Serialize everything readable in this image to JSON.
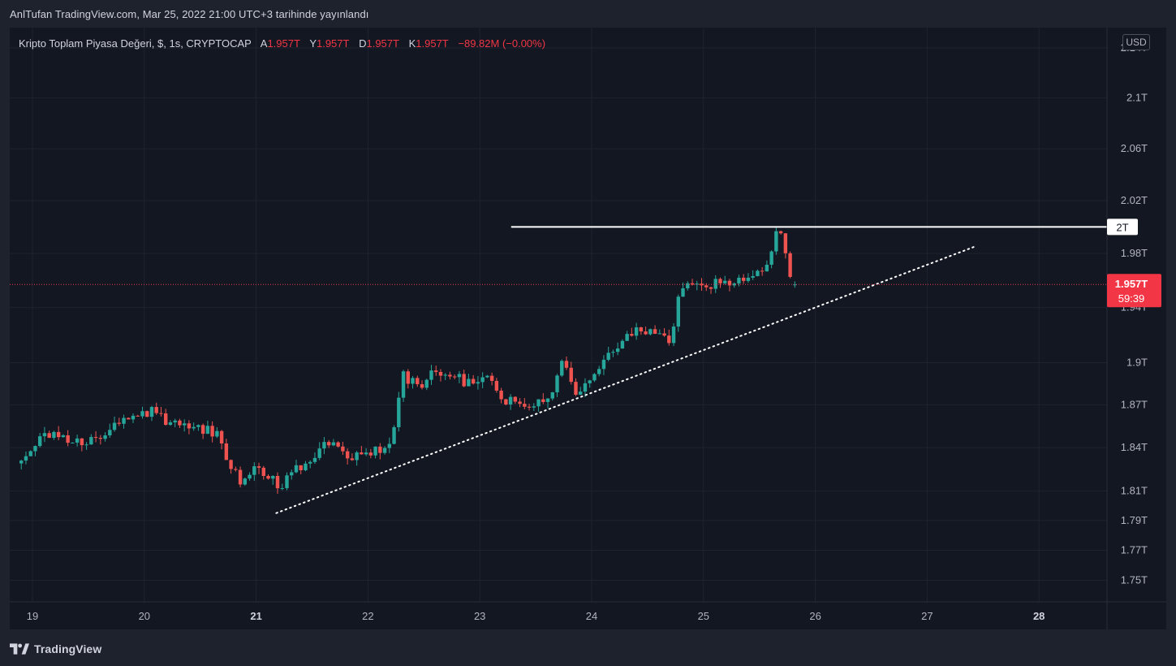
{
  "published_note": "AnlTufan TradingView.com, Mar 25, 2022 21:00 UTC+3 tarihinde yayınlandı",
  "legend": {
    "symbol": "Kripto Toplam Piyasa Değeri, $, 1s, CRYPTOCAP",
    "open_label": "A",
    "open": "1.957T",
    "high_label": "Y",
    "high": "1.957T",
    "low_label": "D",
    "low": "1.957T",
    "close_label": "K",
    "close": "1.957T",
    "change": "−89.82M (−0.00%)"
  },
  "currency": "USD",
  "brand": "TradingView",
  "colors": {
    "up": "#26a69a",
    "down": "#ef5350",
    "background": "#131722",
    "grid": "#1f2330",
    "resistance": "#ffffff",
    "trendline": "#ffffff",
    "price_badge": "#f23645"
  },
  "chart_data": {
    "type": "candlestick",
    "title": "Kripto Toplam Piyasa Değeri, $, 1s, CRYPTOCAP",
    "y_unit": "T",
    "y_scale": "log",
    "ylim": [
      1.74,
      2.13
    ],
    "xlim": [
      18.9,
      28.6
    ],
    "grid": true,
    "y_ticks": [
      {
        "value": 1.75,
        "label": "1.75T"
      },
      {
        "value": 1.77,
        "label": "1.77T"
      },
      {
        "value": 1.79,
        "label": "1.79T"
      },
      {
        "value": 1.81,
        "label": "1.81T"
      },
      {
        "value": 1.84,
        "label": "1.84T"
      },
      {
        "value": 1.87,
        "label": "1.87T"
      },
      {
        "value": 1.9,
        "label": "1.9T"
      },
      {
        "value": 1.94,
        "label": "1.94T"
      },
      {
        "value": 1.98,
        "label": "1.98T"
      },
      {
        "value": 2.02,
        "label": "2.02T"
      },
      {
        "value": 2.06,
        "label": "2.06T"
      },
      {
        "value": 2.1,
        "label": "2.1T"
      },
      {
        "value": 2.14,
        "label": "2.14T"
      }
    ],
    "x_ticks": [
      {
        "value": 19,
        "label": "19"
      },
      {
        "value": 20,
        "label": "20"
      },
      {
        "value": 21,
        "label": "21",
        "bold": true
      },
      {
        "value": 22,
        "label": "22"
      },
      {
        "value": 23,
        "label": "23"
      },
      {
        "value": 24,
        "label": "24"
      },
      {
        "value": 25,
        "label": "25"
      },
      {
        "value": 26,
        "label": "26"
      },
      {
        "value": 27,
        "label": "27"
      },
      {
        "value": 28,
        "label": "28",
        "bold": true
      }
    ],
    "resistance": {
      "value": 2.0,
      "label": "2T",
      "x_start": 23.28
    },
    "last_price": {
      "value": 1.957,
      "label": "1.957T",
      "countdown": "59:39"
    },
    "trendline": {
      "x1": 21.18,
      "y1": 1.795,
      "x2": 27.42,
      "y2": 1.985,
      "style": "dotted"
    },
    "anchors": [
      {
        "x": 18.9,
        "y": 1.829
      },
      {
        "x": 19.1,
        "y": 1.848
      },
      {
        "x": 19.35,
        "y": 1.846
      },
      {
        "x": 19.55,
        "y": 1.843
      },
      {
        "x": 19.85,
        "y": 1.862
      },
      {
        "x": 20.05,
        "y": 1.866
      },
      {
        "x": 20.25,
        "y": 1.856
      },
      {
        "x": 20.5,
        "y": 1.854
      },
      {
        "x": 20.65,
        "y": 1.848
      },
      {
        "x": 20.85,
        "y": 1.817
      },
      {
        "x": 21.0,
        "y": 1.83
      },
      {
        "x": 21.2,
        "y": 1.812
      },
      {
        "x": 21.45,
        "y": 1.832
      },
      {
        "x": 21.65,
        "y": 1.842
      },
      {
        "x": 21.85,
        "y": 1.832
      },
      {
        "x": 22.1,
        "y": 1.838
      },
      {
        "x": 22.2,
        "y": 1.84
      },
      {
        "x": 22.3,
        "y": 1.892
      },
      {
        "x": 22.45,
        "y": 1.882
      },
      {
        "x": 22.6,
        "y": 1.896
      },
      {
        "x": 22.9,
        "y": 1.885
      },
      {
        "x": 23.05,
        "y": 1.893
      },
      {
        "x": 23.2,
        "y": 1.872
      },
      {
        "x": 23.45,
        "y": 1.872
      },
      {
        "x": 23.65,
        "y": 1.875
      },
      {
        "x": 23.75,
        "y": 1.906
      },
      {
        "x": 23.85,
        "y": 1.878
      },
      {
        "x": 24.1,
        "y": 1.902
      },
      {
        "x": 24.3,
        "y": 1.92
      },
      {
        "x": 24.6,
        "y": 1.925
      },
      {
        "x": 24.72,
        "y": 1.915
      },
      {
        "x": 24.78,
        "y": 1.955
      },
      {
        "x": 25.05,
        "y": 1.957
      },
      {
        "x": 25.3,
        "y": 1.958
      },
      {
        "x": 25.55,
        "y": 1.966
      },
      {
        "x": 25.65,
        "y": 1.996
      },
      {
        "x": 25.72,
        "y": 1.988
      },
      {
        "x": 25.78,
        "y": 1.957
      },
      {
        "x": 25.82,
        "y": 1.957
      }
    ]
  }
}
